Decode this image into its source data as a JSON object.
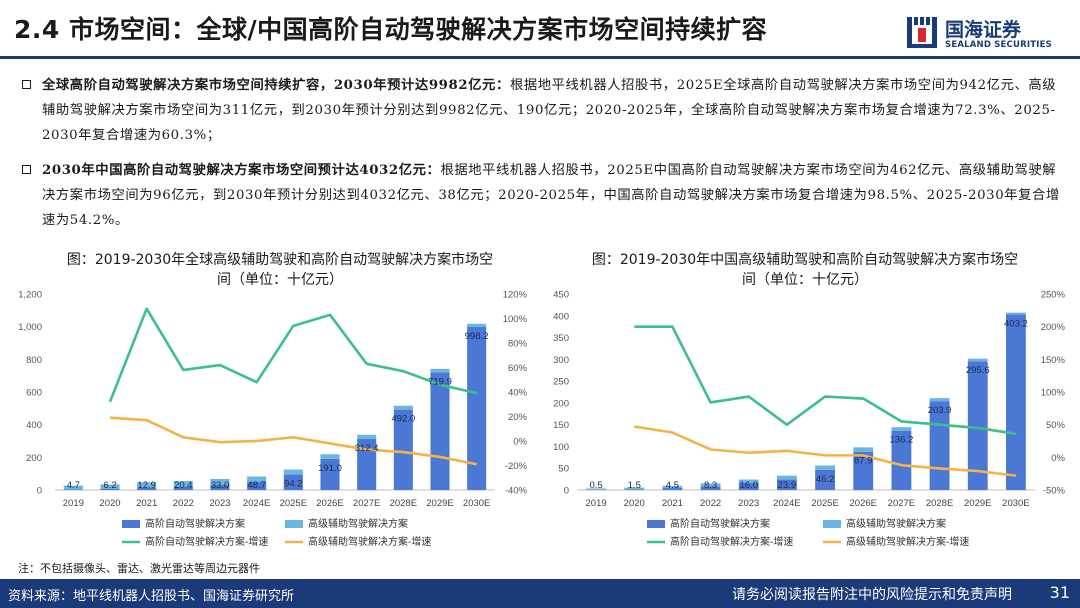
{
  "header": {
    "title": "2.4 市场空间：全球/中国高阶自动驾驶解决方案市场空间持续扩容",
    "logo_cn": "国海证券",
    "logo_en": "SEALAND SECURITIES",
    "accent_color": "#1a3a7a",
    "logo_red": "#d7282f"
  },
  "paragraphs": [
    {
      "bold": "全球高阶自动驾驶解决方案市场空间持续扩容，2030年预计达9982亿元：",
      "text": "根据地平线机器人招股书，2025E全球高阶自动驾驶解决方案市场空间为942亿元、高级辅助驾驶解决方案市场空间为311亿元，到2030年预计分别达到9982亿元、190亿元；2020-2025年，全球高阶自动驾驶解决方案市场复合增速为72.3%、2025-2030年复合增速为60.3%；"
    },
    {
      "bold": "2030年中国高阶自动驾驶解决方案市场空间预计达4032亿元：",
      "text": "根据地平线机器人招股书，2025E中国高阶自动驾驶解决方案市场空间为462亿元、高级辅助驾驶解决方案市场空间为96亿元，到2030年预计分别达到4032亿元、38亿元；2020-2025年，中国高阶自动驾驶解决方案市场复合增速为98.5%、2025-2030年复合增速为54.2%。"
    }
  ],
  "charts_titles": [
    "图：2019-2030年全球高级辅助驾驶和高阶自动驾驶解决方案市场空间（单位：十亿元）",
    "图：2019-2030年中国高级辅助驾驶和高阶自动驾驶解决方案市场空间（单位：十亿元）"
  ],
  "legend": {
    "bar_high": "高阶自动驾驶解决方案",
    "bar_adas": "高级辅助驾驶解决方案",
    "line_high": "高阶自动驾驶解决方案-增速",
    "line_adas": "高级辅助驾驶解决方案-增速"
  },
  "colors": {
    "bar_high": "#4a78d4",
    "bar_adas": "#6bb5e0",
    "line_high": "#3dbf8a",
    "line_adas": "#f4b24a"
  },
  "chart_data": [
    {
      "type": "bar",
      "title": "图：2019-2030年全球高级辅助驾驶和高阶自动驾驶解决方案市场空间（单位：十亿元）",
      "categories": [
        "2019",
        "2020",
        "2021",
        "2022",
        "2023",
        "2024E",
        "2025E",
        "2026E",
        "2027E",
        "2028E",
        "2029E",
        "2030E"
      ],
      "series": [
        {
          "name": "高阶自动驾驶解决方案",
          "kind": "bar",
          "axis": "left",
          "values": [
            4.7,
            6.2,
            12.9,
            20.4,
            33.0,
            48.7,
            94.2,
            191.0,
            312.4,
            492.0,
            719.9,
            998.2
          ]
        },
        {
          "name": "高级辅助驾驶解决方案",
          "kind": "bar",
          "axis": "left",
          "values": [
            22,
            28,
            34,
            34,
            35,
            34,
            31,
            28,
            26,
            24,
            22,
            19
          ]
        },
        {
          "name": "高阶自动驾驶解决方案-增速",
          "kind": "line",
          "axis": "right",
          "values": [
            null,
            32,
            108,
            58,
            62,
            48,
            94,
            103,
            63,
            57,
            46,
            39
          ]
        },
        {
          "name": "高级辅助驾驶解决方案-增速",
          "kind": "line",
          "axis": "right",
          "values": [
            null,
            19,
            17,
            3,
            -1,
            0,
            3,
            -2,
            -7,
            -9,
            -13,
            -19
          ]
        }
      ],
      "y_left": {
        "min": 0,
        "max": 1200,
        "ticks": [
          0,
          200,
          400,
          600,
          800,
          1000,
          1200
        ],
        "labels": [
          "0",
          "200",
          "400",
          "600",
          "800",
          "1,000",
          "1,200"
        ]
      },
      "y_right": {
        "min": -40,
        "max": 120,
        "ticks": [
          -40,
          -20,
          0,
          20,
          40,
          60,
          80,
          100,
          120
        ],
        "labels": [
          "-40%",
          "-20%",
          "0%",
          "20%",
          "40%",
          "60%",
          "80%",
          "100%",
          "120%"
        ]
      },
      "data_labels": [
        "4.7",
        "6.2",
        "12.9",
        "20.4",
        "33.0",
        "48.7",
        "94.2",
        "191.0",
        "312.4",
        "492.0",
        "719.9",
        "998.2"
      ]
    },
    {
      "type": "bar",
      "title": "图：2019-2030年中国高级辅助驾驶和高阶自动驾驶解决方案市场空间（单位：十亿元）",
      "categories": [
        "2019",
        "2020",
        "2021",
        "2022",
        "2023",
        "2024E",
        "2025E",
        "2026E",
        "2027E",
        "2028E",
        "2029E",
        "2030E"
      ],
      "series": [
        {
          "name": "高阶自动驾驶解决方案",
          "kind": "bar",
          "axis": "left",
          "values": [
            0.5,
            1.5,
            4.5,
            8.3,
            16.0,
            23.9,
            46.2,
            87.9,
            136.2,
            203.9,
            295.6,
            403.2
          ]
        },
        {
          "name": "高级辅助驾驶解决方案",
          "kind": "bar",
          "axis": "left",
          "values": [
            3,
            4,
            5,
            7,
            8,
            9,
            10,
            10,
            8,
            7,
            6,
            4
          ]
        },
        {
          "name": "高阶自动驾驶解决方案-增速",
          "kind": "line",
          "axis": "right",
          "values": [
            null,
            200,
            200,
            84,
            93,
            50,
            93,
            90,
            55,
            50,
            45,
            36
          ]
        },
        {
          "name": "高级辅助驾驶解决方案-增速",
          "kind": "line",
          "axis": "right",
          "values": [
            null,
            47,
            38,
            12,
            7,
            10,
            3,
            3,
            -12,
            -17,
            -21,
            -28
          ]
        }
      ],
      "y_left": {
        "min": 0,
        "max": 450,
        "ticks": [
          0,
          50,
          100,
          150,
          200,
          250,
          300,
          350,
          400,
          450
        ],
        "labels": [
          "0",
          "50",
          "100",
          "150",
          "200",
          "250",
          "300",
          "350",
          "400",
          "450"
        ]
      },
      "y_right": {
        "min": -50,
        "max": 250,
        "ticks": [
          -50,
          0,
          50,
          100,
          150,
          200,
          250
        ],
        "labels": [
          "-50%",
          "0%",
          "50%",
          "100%",
          "150%",
          "200%",
          "250%"
        ]
      },
      "data_labels": [
        "0.5",
        "1.5",
        "4.5",
        "8.3",
        "16.0",
        "23.9",
        "46.2",
        "87.9",
        "136.2",
        "203.9",
        "295.6",
        "403.2"
      ]
    }
  ],
  "note": "注：不包括摄像头、雷达、激光雷达等周边元器件",
  "footer": {
    "source": "资料来源：地平线机器人招股书、国海证券研究所",
    "disclaimer": "请务必阅读报告附注中的风险提示和免责声明",
    "page": "31"
  }
}
